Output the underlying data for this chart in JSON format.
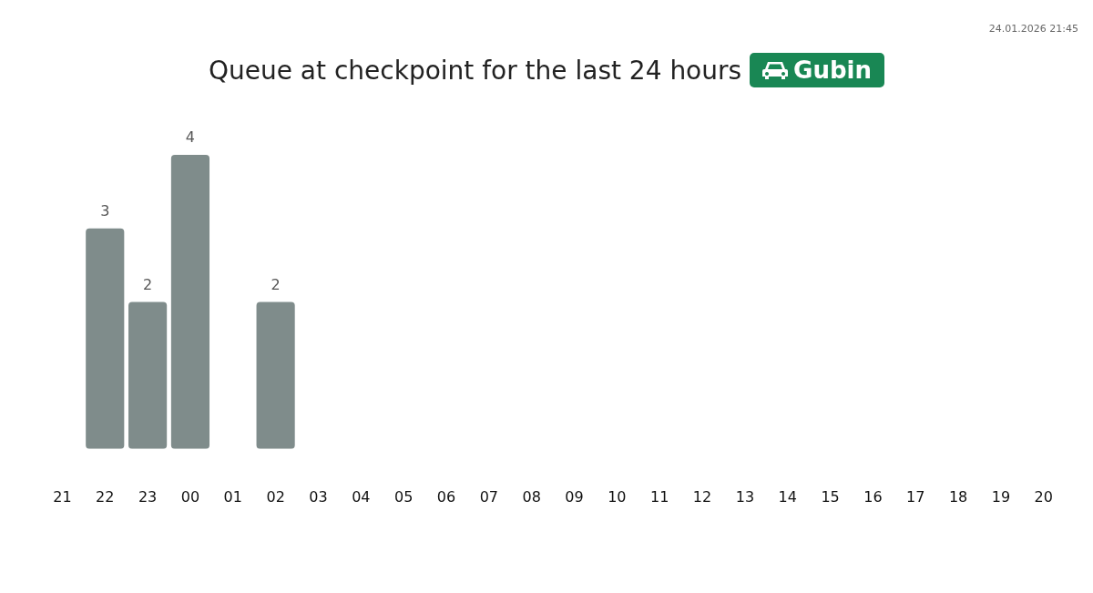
{
  "chart_data": {
    "type": "bar",
    "title": "Queue at checkpoint for the last 24 hours",
    "subtitle": "Gubin",
    "annotations": [
      "24.01.2026 21:45"
    ],
    "categories": [
      "21",
      "22",
      "23",
      "00",
      "01",
      "02",
      "03",
      "04",
      "05",
      "06",
      "07",
      "08",
      "09",
      "10",
      "11",
      "12",
      "13",
      "14",
      "15",
      "16",
      "17",
      "18",
      "19",
      "20"
    ],
    "values": [
      null,
      3,
      2,
      4,
      null,
      2,
      null,
      null,
      null,
      null,
      null,
      null,
      null,
      null,
      null,
      null,
      null,
      null,
      null,
      null,
      null,
      null,
      null,
      null
    ],
    "color": "#7f8c8b",
    "data_labels": true,
    "grid": false,
    "legend": false
  }
}
